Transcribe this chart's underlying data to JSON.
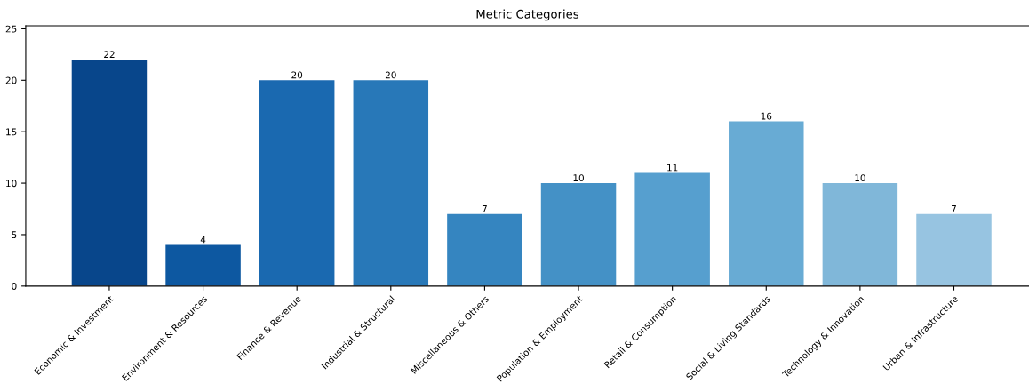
{
  "chart_data": {
    "type": "bar",
    "title": "Metric Categories",
    "categories": [
      "Economic & Investment",
      "Environment & Resources",
      "Finance & Revenue",
      "Industrial & Structural",
      "Miscellaneous & Others",
      "Population & Employment",
      "Retail & Consumption",
      "Social & Living Standards",
      "Technology & Innovation",
      "Urban & Infrastructure"
    ],
    "values": [
      22,
      4,
      20,
      20,
      7,
      10,
      11,
      16,
      10,
      7
    ],
    "colors": [
      "#08468b",
      "#0d58a1",
      "#1a69b0",
      "#2878b8",
      "#3585c0",
      "#4491c6",
      "#569fcf",
      "#68abd4",
      "#80b7d9",
      "#97c4e1"
    ],
    "ylim": [
      0,
      25.3
    ],
    "yticks": [
      0,
      5,
      10,
      15,
      20,
      25
    ],
    "data_labels": true,
    "grid": false,
    "legend": false
  }
}
